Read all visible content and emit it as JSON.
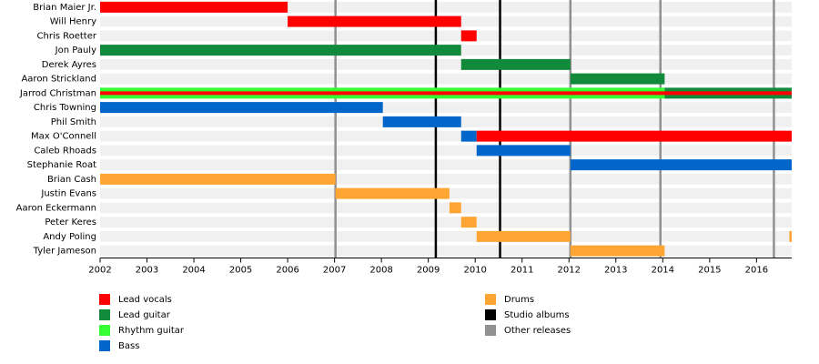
{
  "chart_data": {
    "type": "timeline",
    "xlim": [
      2002,
      2016.75
    ],
    "xticks": [
      2002,
      2003,
      2004,
      2005,
      2006,
      2007,
      2008,
      2009,
      2010,
      2011,
      2012,
      2013,
      2014,
      2015,
      2016
    ],
    "roles": [
      {
        "name": "Lead vocals",
        "color": "#ff0000"
      },
      {
        "name": "Lead guitar",
        "color": "#128a3c"
      },
      {
        "name": "Rhythm guitar",
        "color": "#33ff33"
      },
      {
        "name": "Bass",
        "color": "#0066cc"
      },
      {
        "name": "Drums",
        "color": "#ffa533"
      }
    ],
    "events": [
      {
        "name": "Studio albums",
        "color": "#000000",
        "values": [
          2009.16,
          2010.53
        ]
      },
      {
        "name": "Other releases",
        "color": "#909090",
        "values": [
          2007.02,
          2012.03,
          2013.95,
          2016.37
        ]
      }
    ],
    "members": [
      {
        "name": "Brian Maier Jr.",
        "segments": [
          {
            "start": 2002,
            "end": 2006.0,
            "role": 0
          }
        ]
      },
      {
        "name": "Will Henry",
        "segments": [
          {
            "start": 2006.0,
            "end": 2009.7,
            "role": 0
          }
        ]
      },
      {
        "name": "Chris Roetter",
        "segments": [
          {
            "start": 2009.7,
            "end": 2010.03,
            "role": 0
          }
        ]
      },
      {
        "name": "Jon Pauly",
        "segments": [
          {
            "start": 2002,
            "end": 2009.7,
            "role": 1
          }
        ]
      },
      {
        "name": "Derek Ayres",
        "segments": [
          {
            "start": 2009.7,
            "end": 2012.03,
            "role": 1
          }
        ]
      },
      {
        "name": "Aaron Strickland",
        "segments": [
          {
            "start": 2012.03,
            "end": 2014.04,
            "role": 1
          }
        ]
      },
      {
        "name": "Jarrod Christman",
        "segments": [
          {
            "start": 2002,
            "end": 2014.04,
            "role": 2
          },
          {
            "start": 2014.04,
            "end": 2016.75,
            "role": 1
          },
          {
            "start": 2002,
            "end": 2016.75,
            "role": 0,
            "thin": true
          }
        ]
      },
      {
        "name": "Chris Towning",
        "segments": [
          {
            "start": 2002,
            "end": 2008.03,
            "role": 3
          }
        ]
      },
      {
        "name": "Phil Smith",
        "segments": [
          {
            "start": 2008.03,
            "end": 2009.7,
            "role": 3
          }
        ]
      },
      {
        "name": "Max O'Connell",
        "segments": [
          {
            "start": 2009.7,
            "end": 2010.03,
            "role": 3
          },
          {
            "start": 2010.03,
            "end": 2016.75,
            "role": 0
          }
        ]
      },
      {
        "name": "Caleb Rhoads",
        "segments": [
          {
            "start": 2010.03,
            "end": 2012.03,
            "role": 3
          }
        ]
      },
      {
        "name": "Stephanie Roat",
        "segments": [
          {
            "start": 2012.03,
            "end": 2016.75,
            "role": 3
          }
        ]
      },
      {
        "name": "Brian Cash",
        "segments": [
          {
            "start": 2002,
            "end": 2007.02,
            "role": 4
          }
        ]
      },
      {
        "name": "Justin Evans",
        "segments": [
          {
            "start": 2007.02,
            "end": 2009.45,
            "role": 4
          }
        ]
      },
      {
        "name": "Aaron Eckermann",
        "segments": [
          {
            "start": 2009.45,
            "end": 2009.7,
            "role": 4
          }
        ]
      },
      {
        "name": "Peter Keres",
        "segments": [
          {
            "start": 2009.7,
            "end": 2010.03,
            "role": 4
          }
        ]
      },
      {
        "name": "Andy Poling",
        "segments": [
          {
            "start": 2010.03,
            "end": 2012.03,
            "role": 4
          },
          {
            "start": 2016.7,
            "end": 2016.75,
            "role": 4
          }
        ]
      },
      {
        "name": "Tyler Jameson",
        "segments": [
          {
            "start": 2012.03,
            "end": 2014.04,
            "role": 4
          }
        ]
      }
    ]
  }
}
